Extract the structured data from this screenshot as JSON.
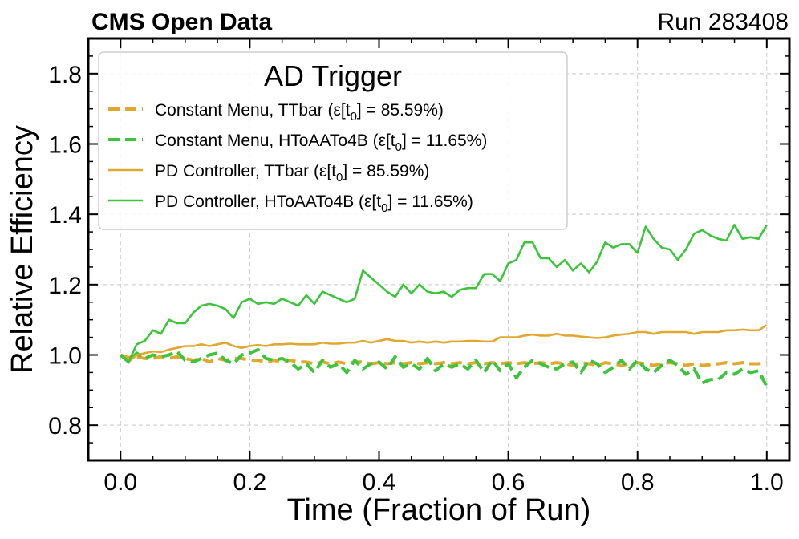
{
  "header": {
    "left": "CMS Open Data",
    "right": "Run 283408"
  },
  "chart_data": {
    "type": "line",
    "title": "",
    "xlabel": "Time (Fraction of Run)",
    "ylabel": "Relative Efficiency",
    "xlim": [
      -0.05,
      1.035
    ],
    "ylim": [
      0.7,
      1.9
    ],
    "xticks": [
      0.0,
      0.2,
      0.4,
      0.6,
      0.8,
      1.0
    ],
    "xtick_labels": [
      "0.0",
      "0.2",
      "0.4",
      "0.6",
      "0.8",
      "1.0"
    ],
    "yticks": [
      0.8,
      1.0,
      1.2,
      1.4,
      1.6,
      1.8
    ],
    "ytick_labels": [
      "0.8",
      "1.0",
      "1.2",
      "1.4",
      "1.6",
      "1.8"
    ],
    "grid": true,
    "legend": {
      "title": "AD Trigger",
      "position": "top-left",
      "entries": [
        {
          "prefix": "Constant Menu, TTbar (ε[t",
          "sub": "0",
          "suffix": "] = 85.59%)"
        },
        {
          "prefix": "Constant Menu, HToAATo4B (ε[t",
          "sub": "0",
          "suffix": "] = 11.65%)"
        },
        {
          "prefix": "PD Controller, TTbar (ε[t",
          "sub": "0",
          "suffix": "] = 85.59%)"
        },
        {
          "prefix": "PD Controller, HToAATo4B (ε[t",
          "sub": "0",
          "suffix": "] = 11.65%)"
        }
      ]
    },
    "x": [
      0.0,
      0.0125,
      0.025,
      0.0375,
      0.05,
      0.0625,
      0.075,
      0.0875,
      0.1,
      0.1125,
      0.125,
      0.1375,
      0.15,
      0.1625,
      0.175,
      0.1875,
      0.2,
      0.2125,
      0.225,
      0.2375,
      0.25,
      0.2625,
      0.275,
      0.2875,
      0.3,
      0.3125,
      0.325,
      0.3375,
      0.35,
      0.3625,
      0.375,
      0.3875,
      0.4,
      0.4125,
      0.425,
      0.4375,
      0.45,
      0.4625,
      0.475,
      0.4875,
      0.5,
      0.5125,
      0.525,
      0.5375,
      0.55,
      0.5625,
      0.575,
      0.5875,
      0.6,
      0.6125,
      0.625,
      0.6375,
      0.65,
      0.6625,
      0.675,
      0.6875,
      0.7,
      0.7125,
      0.725,
      0.7375,
      0.75,
      0.7625,
      0.775,
      0.7875,
      0.8,
      0.8125,
      0.825,
      0.8375,
      0.85,
      0.8625,
      0.875,
      0.8875,
      0.9,
      0.9125,
      0.925,
      0.9375,
      0.95,
      0.9625,
      0.975,
      0.9875,
      1.0
    ],
    "series": [
      {
        "name": "Constant Menu, TTbar",
        "color": "#e0a82e",
        "style": "dashed",
        "values": [
          1.0,
          0.993,
          0.995,
          0.99,
          0.99,
          0.995,
          0.99,
          0.995,
          0.99,
          0.985,
          0.99,
          0.98,
          0.99,
          0.985,
          0.99,
          0.99,
          0.985,
          0.985,
          0.98,
          0.985,
          0.98,
          0.985,
          0.98,
          0.98,
          0.975,
          0.98,
          0.975,
          0.98,
          0.975,
          0.98,
          0.98,
          0.975,
          0.978,
          0.975,
          0.978,
          0.975,
          0.978,
          0.975,
          0.978,
          0.975,
          0.978,
          0.975,
          0.978,
          0.975,
          0.978,
          0.975,
          0.978,
          0.975,
          0.978,
          0.975,
          0.978,
          0.975,
          0.978,
          0.975,
          0.978,
          0.975,
          0.97,
          0.978,
          0.975,
          0.97,
          0.978,
          0.975,
          0.97,
          0.975,
          0.978,
          0.975,
          0.97,
          0.975,
          0.978,
          0.975,
          0.97,
          0.975,
          0.97,
          0.972,
          0.975,
          0.978,
          0.975,
          0.978,
          0.975,
          0.975,
          0.98
        ]
      },
      {
        "name": "Constant Menu, HToAATo4B",
        "color": "#3cc43c",
        "style": "dashed",
        "values": [
          1.0,
          0.98,
          1.005,
          0.99,
          1.0,
          0.995,
          1.0,
          1.01,
          0.985,
          0.98,
          0.99,
          1.0,
          1.005,
          0.985,
          0.975,
          1.0,
          1.005,
          1.015,
          0.99,
          0.985,
          0.99,
          0.98,
          0.96,
          0.975,
          0.95,
          0.985,
          0.965,
          0.975,
          0.95,
          0.985,
          0.96,
          0.975,
          0.98,
          0.96,
          0.995,
          0.965,
          0.975,
          0.96,
          0.99,
          0.955,
          0.975,
          0.965,
          0.975,
          0.96,
          0.985,
          0.95,
          0.985,
          0.955,
          0.975,
          0.935,
          0.965,
          0.985,
          0.975,
          0.965,
          0.96,
          0.975,
          0.98,
          0.95,
          0.985,
          0.975,
          0.95,
          0.965,
          0.985,
          0.96,
          0.985,
          0.96,
          0.95,
          0.97,
          0.985,
          0.97,
          0.945,
          0.96,
          0.92,
          0.93,
          0.93,
          0.95,
          0.945,
          0.96,
          0.95,
          0.955,
          0.91
        ]
      },
      {
        "name": "PD Controller, TTbar",
        "color": "#e0a82e",
        "style": "solid",
        "values": [
          1.0,
          0.98,
          1.0,
          1.005,
          1.01,
          1.008,
          1.015,
          1.02,
          1.025,
          1.025,
          1.03,
          1.025,
          1.03,
          1.035,
          1.025,
          1.02,
          1.025,
          1.028,
          1.025,
          1.03,
          1.03,
          1.032,
          1.03,
          1.03,
          1.03,
          1.035,
          1.032,
          1.032,
          1.035,
          1.035,
          1.04,
          1.035,
          1.04,
          1.045,
          1.04,
          1.04,
          1.035,
          1.038,
          1.035,
          1.038,
          1.035,
          1.038,
          1.038,
          1.04,
          1.04,
          1.038,
          1.038,
          1.05,
          1.05,
          1.05,
          1.055,
          1.058,
          1.055,
          1.055,
          1.06,
          1.055,
          1.055,
          1.052,
          1.05,
          1.048,
          1.05,
          1.055,
          1.058,
          1.06,
          1.065,
          1.065,
          1.06,
          1.065,
          1.065,
          1.065,
          1.065,
          1.06,
          1.065,
          1.065,
          1.065,
          1.07,
          1.07,
          1.072,
          1.07,
          1.07,
          1.085
        ]
      },
      {
        "name": "PD Controller, HToAATo4B",
        "color": "#3cc43c",
        "style": "solid",
        "values": [
          1.0,
          0.98,
          1.03,
          1.04,
          1.07,
          1.06,
          1.1,
          1.09,
          1.09,
          1.12,
          1.14,
          1.145,
          1.14,
          1.13,
          1.105,
          1.15,
          1.16,
          1.145,
          1.15,
          1.145,
          1.16,
          1.15,
          1.14,
          1.17,
          1.145,
          1.18,
          1.17,
          1.16,
          1.15,
          1.16,
          1.24,
          1.22,
          1.2,
          1.18,
          1.165,
          1.2,
          1.175,
          1.2,
          1.18,
          1.175,
          1.18,
          1.165,
          1.185,
          1.19,
          1.19,
          1.23,
          1.23,
          1.21,
          1.26,
          1.27,
          1.32,
          1.32,
          1.275,
          1.275,
          1.25,
          1.27,
          1.24,
          1.26,
          1.235,
          1.265,
          1.32,
          1.305,
          1.315,
          1.315,
          1.29,
          1.365,
          1.33,
          1.305,
          1.3,
          1.27,
          1.3,
          1.345,
          1.355,
          1.34,
          1.33,
          1.325,
          1.37,
          1.33,
          1.335,
          1.33,
          1.37
        ]
      }
    ]
  }
}
